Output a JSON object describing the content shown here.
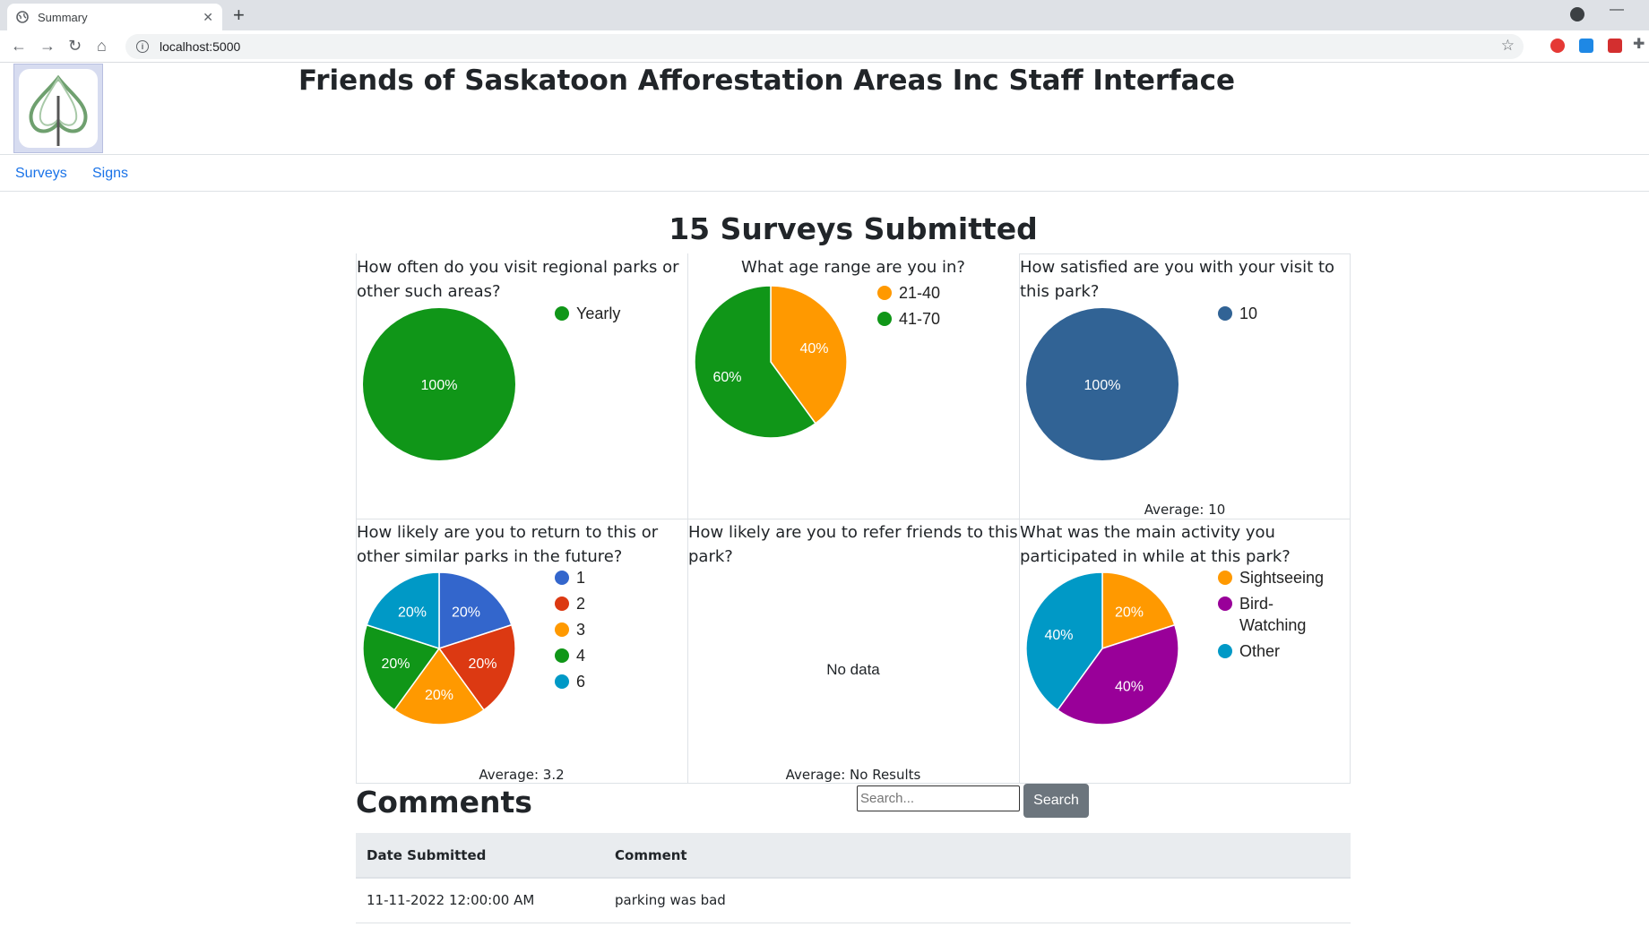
{
  "browser": {
    "tab_title": "Summary",
    "url": "localhost:5000"
  },
  "site": {
    "title": "Friends of Saskatoon Afforestation Areas Inc Staff Interface",
    "nav": [
      "Surveys",
      "Signs"
    ]
  },
  "summary": {
    "title": "15 Surveys Submitted"
  },
  "chart_data": [
    {
      "type": "pie",
      "title": "How often do you visit regional parks or other such areas?",
      "categories": [
        "Yearly"
      ],
      "values": [
        100
      ],
      "colors": [
        "#109618"
      ],
      "average": ""
    },
    {
      "type": "pie",
      "title": "What age range are you in?",
      "categories": [
        "21-40",
        "41-70"
      ],
      "values": [
        40,
        60
      ],
      "colors": [
        "#ff9900",
        "#109618"
      ],
      "average": ""
    },
    {
      "type": "pie",
      "title": "How satisfied are you with your visit to this park?",
      "categories": [
        "10"
      ],
      "values": [
        100
      ],
      "colors": [
        "#316395"
      ],
      "average": "Average: 10"
    },
    {
      "type": "pie",
      "title": "How likely are you to return to this or other similar parks in the future?",
      "categories": [
        "1",
        "2",
        "3",
        "4",
        "6"
      ],
      "values": [
        20,
        20,
        20,
        20,
        20
      ],
      "colors": [
        "#3366cc",
        "#dc3912",
        "#ff9900",
        "#109618",
        "#0099c6"
      ],
      "average": "Average: 3.2"
    },
    {
      "type": "pie",
      "title": "How likely are you to refer friends to this park?",
      "categories": [],
      "values": [],
      "colors": [],
      "no_data": "No data",
      "average": "Average: No Results"
    },
    {
      "type": "pie",
      "title": "What was the main activity you participated in while at this park?",
      "categories": [
        "Sightseeing",
        "Bird-Watching",
        "Other"
      ],
      "legend_lines": [
        [
          "Sightseeing"
        ],
        [
          "Bird-",
          "Watching"
        ],
        [
          "Other"
        ]
      ],
      "values": [
        20,
        40,
        40
      ],
      "colors": [
        "#ff9900",
        "#990099",
        "#0099c6"
      ],
      "average": ""
    }
  ],
  "comments": {
    "title": "Comments",
    "search_placeholder": "Search...",
    "search_button": "Search",
    "headers": [
      "Date Submitted",
      "Comment"
    ],
    "rows": [
      {
        "date": "11-11-2022 12:00:00 AM",
        "comment": "parking was bad"
      }
    ]
  }
}
